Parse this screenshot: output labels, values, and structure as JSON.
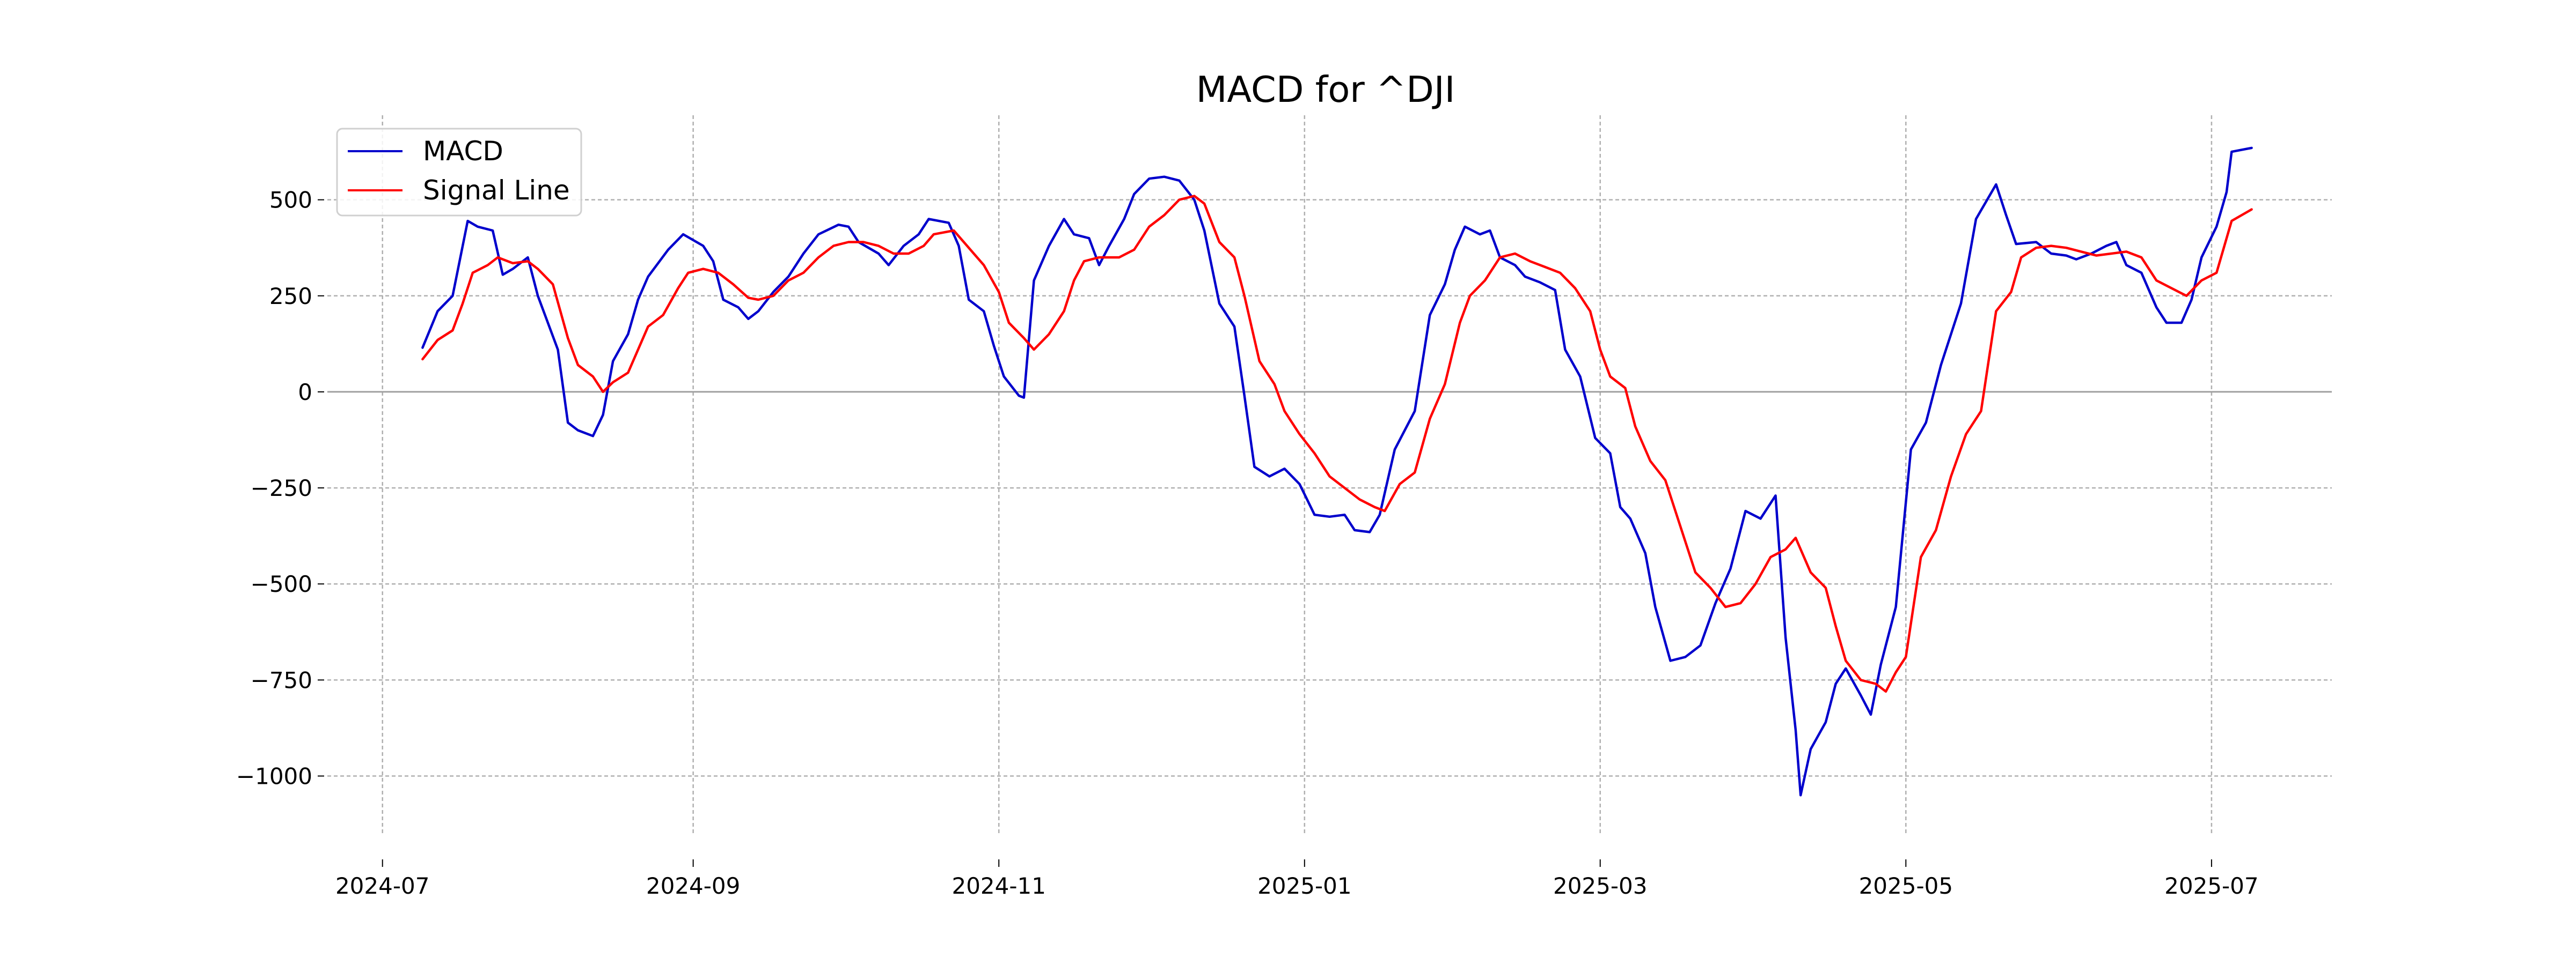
{
  "chart_data": {
    "type": "line",
    "title": "MACD for ^DJI",
    "xlabel": "",
    "ylabel": "",
    "ylim": [
      -1150,
      720
    ],
    "yticks": [
      500,
      250,
      0,
      -250,
      -500,
      -750,
      -1000
    ],
    "ytick_labels": [
      "500",
      "250",
      "0",
      "−250",
      "−500",
      "−750",
      "−1000"
    ],
    "xlim": [
      "2024-06-20",
      "2025-07-25"
    ],
    "xticks": [
      "2024-07-01",
      "2024-09-01",
      "2024-11-01",
      "2025-01-01",
      "2025-03-01",
      "2025-05-01",
      "2025-07-01"
    ],
    "xtick_labels": [
      "2024-07",
      "2024-09",
      "2024-11",
      "2025-01",
      "2025-03",
      "2025-05",
      "2025-07"
    ],
    "grid": true,
    "legend": "top-left",
    "series": [
      {
        "name": "MACD",
        "color": "#0000cc",
        "points": [
          [
            "2024-07-09",
            115
          ],
          [
            "2024-07-12",
            210
          ],
          [
            "2024-07-15",
            250
          ],
          [
            "2024-07-18",
            445
          ],
          [
            "2024-07-20",
            430
          ],
          [
            "2024-07-23",
            420
          ],
          [
            "2024-07-25",
            305
          ],
          [
            "2024-07-27",
            320
          ],
          [
            "2024-07-30",
            350
          ],
          [
            "2024-08-01",
            250
          ],
          [
            "2024-08-05",
            110
          ],
          [
            "2024-08-07",
            -80
          ],
          [
            "2024-08-09",
            -100
          ],
          [
            "2024-08-12",
            -115
          ],
          [
            "2024-08-14",
            -60
          ],
          [
            "2024-08-16",
            80
          ],
          [
            "2024-08-19",
            150
          ],
          [
            "2024-08-21",
            240
          ],
          [
            "2024-08-23",
            300
          ],
          [
            "2024-08-27",
            370
          ],
          [
            "2024-08-30",
            410
          ],
          [
            "2024-09-03",
            380
          ],
          [
            "2024-09-05",
            340
          ],
          [
            "2024-09-07",
            240
          ],
          [
            "2024-09-10",
            220
          ],
          [
            "2024-09-12",
            190
          ],
          [
            "2024-09-14",
            210
          ],
          [
            "2024-09-17",
            260
          ],
          [
            "2024-09-20",
            300
          ],
          [
            "2024-09-23",
            360
          ],
          [
            "2024-09-26",
            410
          ],
          [
            "2024-09-30",
            435
          ],
          [
            "2024-10-02",
            430
          ],
          [
            "2024-10-04",
            390
          ],
          [
            "2024-10-08",
            360
          ],
          [
            "2024-10-10",
            330
          ],
          [
            "2024-10-13",
            380
          ],
          [
            "2024-10-16",
            410
          ],
          [
            "2024-10-18",
            450
          ],
          [
            "2024-10-22",
            440
          ],
          [
            "2024-10-24",
            380
          ],
          [
            "2024-10-26",
            240
          ],
          [
            "2024-10-29",
            210
          ],
          [
            "2024-10-31",
            120
          ],
          [
            "2024-11-02",
            40
          ],
          [
            "2024-11-05",
            -10
          ],
          [
            "2024-11-06",
            -15
          ],
          [
            "2024-11-08",
            290
          ],
          [
            "2024-11-11",
            380
          ],
          [
            "2024-11-14",
            450
          ],
          [
            "2024-11-16",
            410
          ],
          [
            "2024-11-19",
            400
          ],
          [
            "2024-11-21",
            330
          ],
          [
            "2024-11-23",
            380
          ],
          [
            "2024-11-26",
            450
          ],
          [
            "2024-11-28",
            515
          ],
          [
            "2024-12-01",
            555
          ],
          [
            "2024-12-04",
            560
          ],
          [
            "2024-12-07",
            550
          ],
          [
            "2024-12-10",
            500
          ],
          [
            "2024-12-12",
            420
          ],
          [
            "2024-12-15",
            230
          ],
          [
            "2024-12-18",
            170
          ],
          [
            "2024-12-20",
            -10
          ],
          [
            "2024-12-22",
            -195
          ],
          [
            "2024-12-25",
            -220
          ],
          [
            "2024-12-28",
            -200
          ],
          [
            "2024-12-31",
            -240
          ],
          [
            "2025-01-03",
            -320
          ],
          [
            "2025-01-06",
            -325
          ],
          [
            "2025-01-09",
            -320
          ],
          [
            "2025-01-11",
            -360
          ],
          [
            "2025-01-14",
            -365
          ],
          [
            "2025-01-16",
            -320
          ],
          [
            "2025-01-19",
            -150
          ],
          [
            "2025-01-23",
            -50
          ],
          [
            "2025-01-26",
            200
          ],
          [
            "2025-01-29",
            280
          ],
          [
            "2025-01-31",
            370
          ],
          [
            "2025-02-02",
            430
          ],
          [
            "2025-02-05",
            410
          ],
          [
            "2025-02-07",
            420
          ],
          [
            "2025-02-09",
            350
          ],
          [
            "2025-02-12",
            330
          ],
          [
            "2025-02-14",
            300
          ],
          [
            "2025-02-17",
            285
          ],
          [
            "2025-02-20",
            265
          ],
          [
            "2025-02-22",
            110
          ],
          [
            "2025-02-25",
            40
          ],
          [
            "2025-02-28",
            -120
          ],
          [
            "2025-03-03",
            -160
          ],
          [
            "2025-03-05",
            -300
          ],
          [
            "2025-03-07",
            -330
          ],
          [
            "2025-03-10",
            -420
          ],
          [
            "2025-03-12",
            -560
          ],
          [
            "2025-03-15",
            -700
          ],
          [
            "2025-03-18",
            -690
          ],
          [
            "2025-03-21",
            -660
          ],
          [
            "2025-03-24",
            -550
          ],
          [
            "2025-03-27",
            -460
          ],
          [
            "2025-03-30",
            -310
          ],
          [
            "2025-04-02",
            -330
          ],
          [
            "2025-04-05",
            -270
          ],
          [
            "2025-04-07",
            -640
          ],
          [
            "2025-04-09",
            -880
          ],
          [
            "2025-04-10",
            -1050
          ],
          [
            "2025-04-12",
            -930
          ],
          [
            "2025-04-15",
            -860
          ],
          [
            "2025-04-17",
            -760
          ],
          [
            "2025-04-19",
            -720
          ],
          [
            "2025-04-22",
            -790
          ],
          [
            "2025-04-24",
            -840
          ],
          [
            "2025-04-26",
            -710
          ],
          [
            "2025-04-29",
            -560
          ],
          [
            "2025-05-02",
            -150
          ],
          [
            "2025-05-05",
            -80
          ],
          [
            "2025-05-08",
            70
          ],
          [
            "2025-05-12",
            230
          ],
          [
            "2025-05-15",
            450
          ],
          [
            "2025-05-19",
            540
          ],
          [
            "2025-05-21",
            460
          ],
          [
            "2025-05-23",
            385
          ],
          [
            "2025-05-27",
            390
          ],
          [
            "2025-05-30",
            360
          ],
          [
            "2025-06-02",
            355
          ],
          [
            "2025-06-04",
            345
          ],
          [
            "2025-06-07",
            360
          ],
          [
            "2025-06-10",
            380
          ],
          [
            "2025-06-12",
            390
          ],
          [
            "2025-06-14",
            330
          ],
          [
            "2025-06-17",
            310
          ],
          [
            "2025-06-20",
            220
          ],
          [
            "2025-06-22",
            180
          ],
          [
            "2025-06-25",
            180
          ],
          [
            "2025-06-27",
            240
          ],
          [
            "2025-06-29",
            350
          ],
          [
            "2025-07-02",
            430
          ],
          [
            "2025-07-04",
            520
          ],
          [
            "2025-07-05",
            625
          ],
          [
            "2025-07-09",
            635
          ]
        ]
      },
      {
        "name": "Signal Line",
        "color": "#ff0000",
        "points": [
          [
            "2024-07-09",
            85
          ],
          [
            "2024-07-12",
            135
          ],
          [
            "2024-07-15",
            160
          ],
          [
            "2024-07-17",
            230
          ],
          [
            "2024-07-19",
            310
          ],
          [
            "2024-07-22",
            330
          ],
          [
            "2024-07-24",
            350
          ],
          [
            "2024-07-27",
            335
          ],
          [
            "2024-07-30",
            340
          ],
          [
            "2024-08-01",
            320
          ],
          [
            "2024-08-04",
            280
          ],
          [
            "2024-08-07",
            140
          ],
          [
            "2024-08-09",
            70
          ],
          [
            "2024-08-12",
            40
          ],
          [
            "2024-08-14",
            0
          ],
          [
            "2024-08-16",
            25
          ],
          [
            "2024-08-19",
            50
          ],
          [
            "2024-08-23",
            170
          ],
          [
            "2024-08-26",
            200
          ],
          [
            "2024-08-29",
            270
          ],
          [
            "2024-08-31",
            310
          ],
          [
            "2024-09-03",
            320
          ],
          [
            "2024-09-06",
            310
          ],
          [
            "2024-09-09",
            280
          ],
          [
            "2024-09-12",
            245
          ],
          [
            "2024-09-14",
            240
          ],
          [
            "2024-09-17",
            250
          ],
          [
            "2024-09-20",
            290
          ],
          [
            "2024-09-23",
            310
          ],
          [
            "2024-09-26",
            350
          ],
          [
            "2024-09-29",
            380
          ],
          [
            "2024-10-02",
            390
          ],
          [
            "2024-10-05",
            390
          ],
          [
            "2024-10-08",
            380
          ],
          [
            "2024-10-11",
            360
          ],
          [
            "2024-10-14",
            360
          ],
          [
            "2024-10-17",
            380
          ],
          [
            "2024-10-19",
            410
          ],
          [
            "2024-10-23",
            420
          ],
          [
            "2024-10-25",
            390
          ],
          [
            "2024-10-27",
            360
          ],
          [
            "2024-10-29",
            330
          ],
          [
            "2024-11-01",
            260
          ],
          [
            "2024-11-03",
            180
          ],
          [
            "2024-11-06",
            140
          ],
          [
            "2024-11-08",
            110
          ],
          [
            "2024-11-11",
            150
          ],
          [
            "2024-11-14",
            210
          ],
          [
            "2024-11-16",
            290
          ],
          [
            "2024-11-18",
            340
          ],
          [
            "2024-11-21",
            350
          ],
          [
            "2024-11-25",
            350
          ],
          [
            "2024-11-28",
            370
          ],
          [
            "2024-12-01",
            430
          ],
          [
            "2024-12-04",
            460
          ],
          [
            "2024-12-07",
            500
          ],
          [
            "2024-12-10",
            510
          ],
          [
            "2024-12-12",
            490
          ],
          [
            "2024-12-15",
            390
          ],
          [
            "2024-12-18",
            350
          ],
          [
            "2024-12-20",
            250
          ],
          [
            "2024-12-23",
            80
          ],
          [
            "2024-12-26",
            20
          ],
          [
            "2024-12-28",
            -50
          ],
          [
            "2024-12-31",
            -110
          ],
          [
            "2025-01-03",
            -160
          ],
          [
            "2025-01-06",
            -220
          ],
          [
            "2025-01-09",
            -250
          ],
          [
            "2025-01-12",
            -280
          ],
          [
            "2025-01-15",
            -300
          ],
          [
            "2025-01-17",
            -310
          ],
          [
            "2025-01-20",
            -240
          ],
          [
            "2025-01-23",
            -210
          ],
          [
            "2025-01-26",
            -70
          ],
          [
            "2025-01-29",
            20
          ],
          [
            "2025-02-01",
            180
          ],
          [
            "2025-02-03",
            250
          ],
          [
            "2025-02-06",
            290
          ],
          [
            "2025-02-09",
            350
          ],
          [
            "2025-02-12",
            360
          ],
          [
            "2025-02-15",
            340
          ],
          [
            "2025-02-18",
            325
          ],
          [
            "2025-02-21",
            310
          ],
          [
            "2025-02-24",
            270
          ],
          [
            "2025-02-27",
            210
          ],
          [
            "2025-03-01",
            110
          ],
          [
            "2025-03-03",
            40
          ],
          [
            "2025-03-06",
            10
          ],
          [
            "2025-03-08",
            -90
          ],
          [
            "2025-03-11",
            -180
          ],
          [
            "2025-03-14",
            -230
          ],
          [
            "2025-03-17",
            -350
          ],
          [
            "2025-03-20",
            -470
          ],
          [
            "2025-03-23",
            -510
          ],
          [
            "2025-03-26",
            -560
          ],
          [
            "2025-03-29",
            -550
          ],
          [
            "2025-04-01",
            -500
          ],
          [
            "2025-04-04",
            -430
          ],
          [
            "2025-04-07",
            -410
          ],
          [
            "2025-04-09",
            -380
          ],
          [
            "2025-04-12",
            -470
          ],
          [
            "2025-04-15",
            -510
          ],
          [
            "2025-04-17",
            -610
          ],
          [
            "2025-04-19",
            -700
          ],
          [
            "2025-04-22",
            -750
          ],
          [
            "2025-04-25",
            -760
          ],
          [
            "2025-04-27",
            -780
          ],
          [
            "2025-04-29",
            -730
          ],
          [
            "2025-05-01",
            -690
          ],
          [
            "2025-05-04",
            -430
          ],
          [
            "2025-05-07",
            -360
          ],
          [
            "2025-05-10",
            -220
          ],
          [
            "2025-05-13",
            -110
          ],
          [
            "2025-05-16",
            -50
          ],
          [
            "2025-05-19",
            210
          ],
          [
            "2025-05-22",
            260
          ],
          [
            "2025-05-24",
            350
          ],
          [
            "2025-05-27",
            375
          ],
          [
            "2025-05-30",
            380
          ],
          [
            "2025-06-02",
            375
          ],
          [
            "2025-06-05",
            365
          ],
          [
            "2025-06-08",
            355
          ],
          [
            "2025-06-11",
            360
          ],
          [
            "2025-06-14",
            365
          ],
          [
            "2025-06-17",
            350
          ],
          [
            "2025-06-20",
            290
          ],
          [
            "2025-06-23",
            270
          ],
          [
            "2025-06-26",
            250
          ],
          [
            "2025-06-29",
            290
          ],
          [
            "2025-07-02",
            310
          ],
          [
            "2025-07-05",
            445
          ],
          [
            "2025-07-09",
            475
          ]
        ]
      }
    ]
  }
}
